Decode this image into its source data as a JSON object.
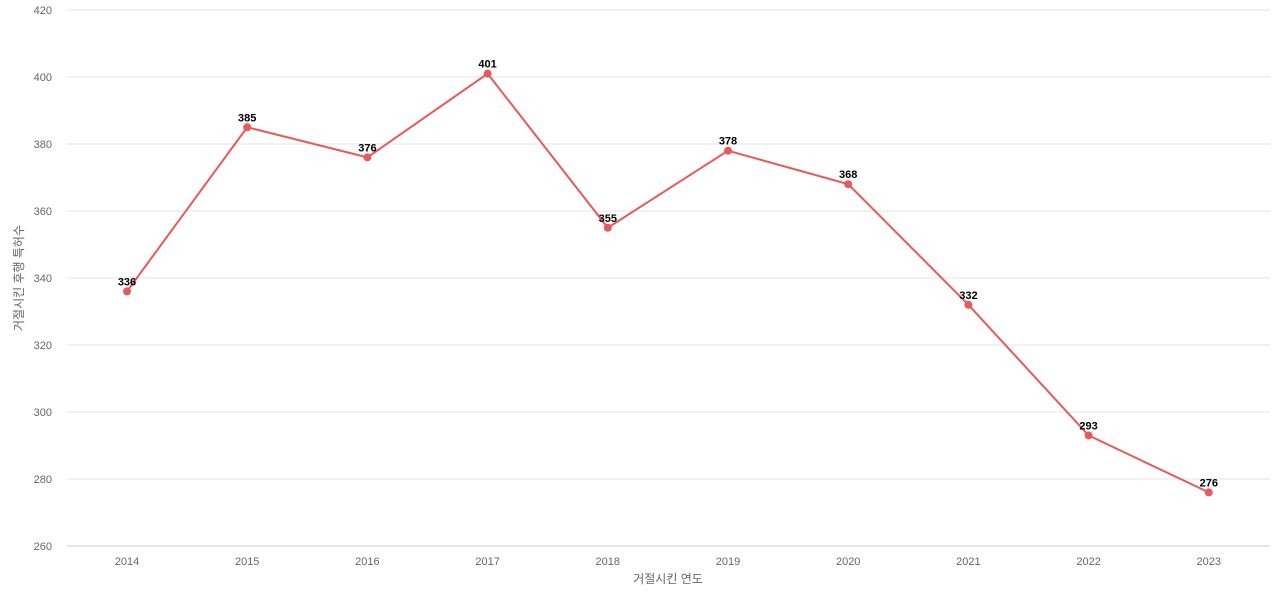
{
  "chart_data": {
    "type": "line",
    "title": "",
    "xlabel": "거절시킨 연도",
    "ylabel": "거절시킨 후행 특허수",
    "categories": [
      "2014",
      "2015",
      "2016",
      "2017",
      "2018",
      "2019",
      "2020",
      "2021",
      "2022",
      "2023"
    ],
    "series": [
      {
        "values": [
          336,
          385,
          376,
          401,
          355,
          378,
          368,
          332,
          293,
          276
        ],
        "color": "#e85a5a"
      }
    ],
    "ylim": [
      260,
      420
    ],
    "yticks": [
      "260",
      "280",
      "300",
      "320",
      "340",
      "360",
      "380",
      "400",
      "420"
    ],
    "data_labels": [
      "336",
      "385",
      "376",
      "401",
      "355",
      "378",
      "368",
      "332",
      "293",
      "276"
    ],
    "grid": true,
    "legend": "none"
  }
}
